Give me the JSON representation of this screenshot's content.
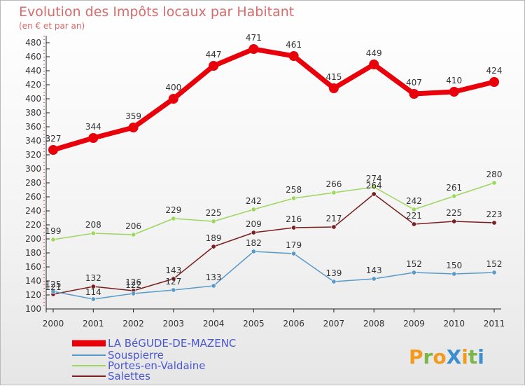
{
  "chart_data": {
    "type": "line",
    "title": "Evolution des Impôts locaux par Habitant",
    "subtitle": "(en € et par an)",
    "x": [
      "2000",
      "2001",
      "2002",
      "2003",
      "2004",
      "2005",
      "2006",
      "2007",
      "2008",
      "2009",
      "2010",
      "2011"
    ],
    "ylim": [
      100,
      480
    ],
    "yticks": [
      100,
      120,
      140,
      160,
      180,
      200,
      220,
      240,
      260,
      280,
      300,
      320,
      340,
      360,
      380,
      400,
      420,
      440,
      460,
      480
    ],
    "grid": false,
    "legend_position": "bottom-left",
    "series": [
      {
        "name": "LA BéGUDE-DE-MAZENC",
        "color": "#e8000b",
        "values": [
          327,
          344,
          359,
          400,
          447,
          471,
          461,
          415,
          449,
          407,
          410,
          424
        ]
      },
      {
        "name": "Souspierre",
        "color": "#5a9ac8",
        "values": [
          125,
          114,
          122,
          127,
          133,
          182,
          179,
          139,
          143,
          152,
          150,
          152
        ]
      },
      {
        "name": "Portes-en-Valdaine",
        "color": "#9ed65f",
        "values": [
          199,
          208,
          206,
          229,
          225,
          242,
          258,
          266,
          274,
          242,
          261,
          280
        ]
      },
      {
        "name": "Salettes",
        "color": "#7a1f20",
        "values": [
          121,
          132,
          126,
          143,
          189,
          209,
          216,
          217,
          264,
          221,
          225,
          223
        ]
      }
    ],
    "data_labels": [
      [
        "327",
        "344",
        "359",
        "400",
        "447",
        "471",
        "461",
        "415",
        "449",
        "407",
        "410",
        "424"
      ],
      [
        "125",
        "114",
        "122",
        "127",
        "133",
        "182",
        "179",
        "139",
        "143",
        "152",
        "150",
        "152"
      ],
      [
        "199",
        "208",
        "206",
        "229",
        "225",
        "242",
        "258",
        "266",
        "274",
        "242",
        "261",
        "280"
      ],
      [
        "121",
        "132",
        "126",
        "143",
        "189",
        "209",
        "216",
        "217",
        "264",
        "221",
        "225",
        "223"
      ]
    ]
  },
  "logo": {
    "text": "ProXiti",
    "letters": [
      {
        "ch": "P",
        "color": "#f29a1e"
      },
      {
        "ch": "r",
        "color": "#7ab648"
      },
      {
        "ch": "o",
        "color": "#f29a1e"
      },
      {
        "ch": "X",
        "color": "#3b8ed0"
      },
      {
        "ch": "i",
        "color": "#f29a1e"
      },
      {
        "ch": "t",
        "color": "#7ab648"
      },
      {
        "ch": "i",
        "color": "#3b8ed0"
      }
    ]
  }
}
